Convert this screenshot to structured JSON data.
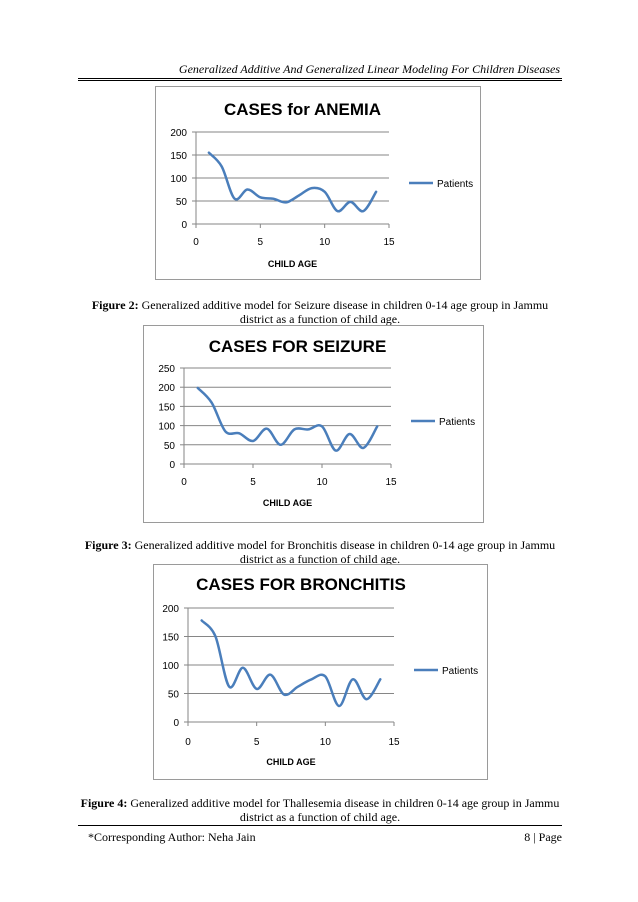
{
  "header": {
    "title": "Generalized Additive And Generalized Linear Modeling For   Children Diseases"
  },
  "captions": [
    {
      "label": "Figure 2:",
      "text": " Generalized additive model for Seizure disease in children 0-14 age group in Jammu district as a function of child age."
    },
    {
      "label": "Figure 3:",
      "text": " Generalized additive model for Bronchitis disease in children 0-14 age group in Jammu district as a function of child age."
    },
    {
      "label": "Figure 4:",
      "text": " Generalized additive model for Thallesemia disease in children 0-14 age group in Jammu district as a function of child age."
    }
  ],
  "footer": {
    "author": "*Corresponding Author: Neha Jain",
    "page": "8 | Page"
  },
  "colors": {
    "series": "#4a7ebb",
    "grid": "#868686",
    "frame": "#9a9a9a"
  },
  "chart_data": [
    {
      "type": "line",
      "title": "CASES for ANEMIA",
      "xlabel": "CHILD AGE",
      "ylabel": "",
      "xlim": [
        0,
        15
      ],
      "ylim": [
        0,
        200
      ],
      "xticks": [
        0,
        5,
        10,
        15
      ],
      "yticks": [
        0,
        50,
        100,
        150,
        200
      ],
      "grid": true,
      "legend": "right",
      "series": [
        {
          "name": "Patients",
          "x": [
            1,
            2,
            3,
            4,
            5,
            6,
            7,
            8,
            9,
            10,
            11,
            12,
            13,
            14
          ],
          "y": [
            155,
            125,
            55,
            75,
            58,
            55,
            47,
            62,
            78,
            70,
            28,
            48,
            28,
            70
          ]
        }
      ]
    },
    {
      "type": "line",
      "title": "CASES FOR SEIZURE",
      "xlabel": "CHILD AGE",
      "ylabel": "",
      "xlim": [
        0,
        15
      ],
      "ylim": [
        0,
        250
      ],
      "xticks": [
        0,
        5,
        10,
        15
      ],
      "yticks": [
        0,
        50,
        100,
        150,
        200,
        250
      ],
      "grid": true,
      "legend": "right",
      "series": [
        {
          "name": "Patients",
          "x": [
            1,
            2,
            3,
            4,
            5,
            6,
            7,
            8,
            9,
            10,
            11,
            12,
            13,
            14
          ],
          "y": [
            198,
            160,
            85,
            80,
            60,
            92,
            50,
            90,
            90,
            98,
            35,
            78,
            42,
            98
          ]
        }
      ]
    },
    {
      "type": "line",
      "title": "CASES FOR BRONCHITIS",
      "xlabel": "CHILD AGE",
      "ylabel": "",
      "xlim": [
        0,
        15
      ],
      "ylim": [
        0,
        200
      ],
      "xticks": [
        0,
        5,
        10,
        15
      ],
      "yticks": [
        0,
        50,
        100,
        150,
        200
      ],
      "grid": true,
      "legend": "right",
      "series": [
        {
          "name": "Patients",
          "x": [
            1,
            2,
            3,
            4,
            5,
            6,
            7,
            8,
            9,
            10,
            11,
            12,
            13,
            14
          ],
          "y": [
            178,
            150,
            62,
            95,
            58,
            83,
            48,
            62,
            75,
            80,
            28,
            75,
            40,
            75
          ]
        }
      ]
    }
  ]
}
